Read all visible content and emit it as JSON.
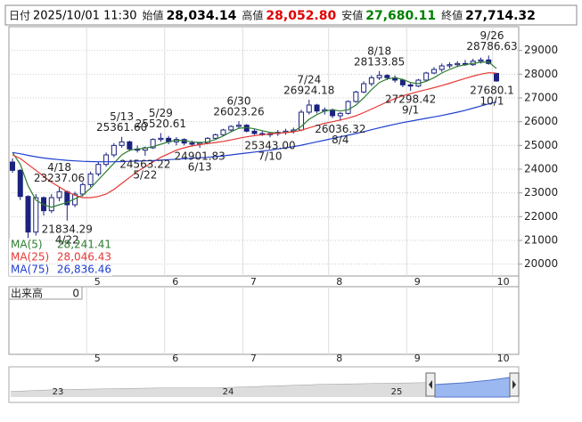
{
  "header": {
    "fields": [
      {
        "label": "日付",
        "value": "2025/10/01 11:30",
        "color": "#000000"
      },
      {
        "label": "始値",
        "value": "28,034.14",
        "color": "#000000"
      },
      {
        "label": "高値",
        "value": "28,052.80",
        "color": "#e00000"
      },
      {
        "label": "安値",
        "value": "27,680.11",
        "color": "#008000"
      },
      {
        "label": "終値",
        "value": "27,714.32",
        "color": "#000000"
      }
    ]
  },
  "chart_data": {
    "type": "candlestick",
    "categories": [
      null,
      null,
      null,
      null,
      null,
      null,
      null,
      null,
      null,
      null,
      "5",
      null,
      null,
      null,
      null,
      null,
      null,
      null,
      null,
      null,
      "6",
      null,
      null,
      null,
      null,
      null,
      null,
      null,
      null,
      null,
      "7",
      null,
      null,
      null,
      null,
      null,
      null,
      null,
      null,
      null,
      null,
      "8",
      null,
      null,
      null,
      null,
      null,
      null,
      null,
      null,
      null,
      "9",
      null,
      null,
      null,
      null,
      null,
      null,
      null,
      null,
      null,
      null,
      "10"
    ],
    "candles": [
      [
        24300,
        24450,
        23850,
        23950
      ],
      [
        23950,
        24000,
        22700,
        22850
      ],
      [
        22850,
        22900,
        21100,
        21350
      ],
      [
        21350,
        22950,
        21200,
        22800
      ],
      [
        22800,
        22850,
        22050,
        22250
      ],
      [
        22250,
        22950,
        22150,
        22800
      ],
      [
        22800,
        23237.06,
        22650,
        23050
      ],
      [
        23050,
        23100,
        21834.29,
        22500
      ],
      [
        22500,
        23050,
        22400,
        22950
      ],
      [
        22950,
        23450,
        22850,
        23350
      ],
      [
        23350,
        23900,
        23250,
        23800
      ],
      [
        23800,
        24300,
        23700,
        24200
      ],
      [
        24200,
        24700,
        24100,
        24600
      ],
      [
        24600,
        25100,
        24500,
        25000
      ],
      [
        25000,
        25361.6,
        24900,
        25150
      ],
      [
        25150,
        25200,
        24750,
        24850
      ],
      [
        24850,
        25000,
        24700,
        24800
      ],
      [
        24800,
        24950,
        24563.22,
        24900
      ],
      [
        24900,
        25300,
        24850,
        25250
      ],
      [
        25250,
        25520.61,
        25150,
        25300
      ],
      [
        25300,
        25400,
        25050,
        25150
      ],
      [
        25150,
        25350,
        25000,
        25250
      ],
      [
        25250,
        25300,
        25000,
        25100
      ],
      [
        25100,
        25200,
        24950,
        25050
      ],
      [
        25050,
        25150,
        24901.83,
        25100
      ],
      [
        25100,
        25350,
        25050,
        25300
      ],
      [
        25300,
        25500,
        25250,
        25450
      ],
      [
        25450,
        25700,
        25400,
        25650
      ],
      [
        25650,
        25850,
        25550,
        25800
      ],
      [
        25800,
        26023.26,
        25700,
        25850
      ],
      [
        25850,
        25900,
        25550,
        25600
      ],
      [
        25600,
        25700,
        25450,
        25500
      ],
      [
        25500,
        25600,
        25400,
        25450
      ],
      [
        25450,
        25550,
        25343,
        25500
      ],
      [
        25500,
        25650,
        25400,
        25550
      ],
      [
        25550,
        25700,
        25450,
        25600
      ],
      [
        25600,
        25750,
        25500,
        25650
      ],
      [
        25650,
        26500,
        25600,
        26400
      ],
      [
        26400,
        26924.18,
        26300,
        26700
      ],
      [
        26700,
        26750,
        26350,
        26450
      ],
      [
        26450,
        26600,
        26300,
        26500
      ],
      [
        26500,
        26550,
        26150,
        26250
      ],
      [
        26250,
        26400,
        26036.32,
        26350
      ],
      [
        26350,
        26900,
        26300,
        26850
      ],
      [
        26850,
        27300,
        26800,
        27250
      ],
      [
        27250,
        27700,
        27200,
        27600
      ],
      [
        27600,
        27950,
        27500,
        27850
      ],
      [
        27850,
        28133.85,
        27750,
        27950
      ],
      [
        27950,
        28000,
        27750,
        27850
      ],
      [
        27850,
        27950,
        27650,
        27750
      ],
      [
        27750,
        27800,
        27450,
        27550
      ],
      [
        27550,
        27650,
        27298.42,
        27500
      ],
      [
        27500,
        27800,
        27450,
        27750
      ],
      [
        27750,
        28100,
        27700,
        28050
      ],
      [
        28050,
        28300,
        28000,
        28200
      ],
      [
        28200,
        28450,
        28100,
        28350
      ],
      [
        28350,
        28500,
        28250,
        28400
      ],
      [
        28400,
        28550,
        28300,
        28450
      ],
      [
        28450,
        28600,
        28350,
        28400
      ],
      [
        28400,
        28650,
        28350,
        28550
      ],
      [
        28550,
        28700,
        28450,
        28600
      ],
      [
        28600,
        28786.63,
        28400,
        28450
      ],
      [
        28034.14,
        28052.8,
        27680.11,
        27714.32
      ]
    ],
    "up_color": "#ffffff",
    "down_color": "#1a237e",
    "edge_color": "#1a237e",
    "series": [
      {
        "name": "MA(5)",
        "color": "#2e7d32",
        "current_label": "28,241.41",
        "values": [
          24700,
          24200,
          23300,
          22700,
          22500,
          22400,
          22500,
          22600,
          22750,
          22900,
          23200,
          23550,
          23900,
          24250,
          24600,
          24800,
          24850,
          24880,
          24950,
          25050,
          25150,
          25220,
          25200,
          25150,
          25120,
          25150,
          25250,
          25400,
          25580,
          25720,
          25750,
          25700,
          25620,
          25550,
          25520,
          25540,
          25580,
          25800,
          26100,
          26300,
          26450,
          26500,
          26450,
          26500,
          26700,
          27000,
          27350,
          27650,
          27800,
          27850,
          27780,
          27650,
          27600,
          27700,
          27850,
          28050,
          28200,
          28330,
          28400,
          28460,
          28500,
          28520,
          28241.41
        ]
      },
      {
        "name": "MA(25)",
        "color": "#e53935",
        "current_label": "28,046.43",
        "values": [
          24600,
          24450,
          24200,
          23950,
          23700,
          23450,
          23250,
          23050,
          22900,
          22800,
          22800,
          22850,
          22950,
          23150,
          23400,
          23650,
          23900,
          24100,
          24300,
          24500,
          24650,
          24800,
          24900,
          24980,
          25030,
          25080,
          25120,
          25170,
          25230,
          25300,
          25360,
          25410,
          25450,
          25480,
          25510,
          25540,
          25570,
          25640,
          25740,
          25840,
          25930,
          26000,
          26070,
          26150,
          26250,
          26380,
          26530,
          26680,
          26830,
          26970,
          27090,
          27180,
          27270,
          27350,
          27430,
          27520,
          27620,
          27720,
          27820,
          27920,
          28000,
          28060,
          28046.43
        ]
      },
      {
        "name": "MA(75)",
        "color": "#1e3fd0",
        "current_label": "26,836.46",
        "values": [
          24700,
          24650,
          24580,
          24520,
          24470,
          24430,
          24400,
          24370,
          24350,
          24330,
          24320,
          24310,
          24310,
          24310,
          24320,
          24330,
          24340,
          24350,
          24360,
          24380,
          24400,
          24420,
          24440,
          24460,
          24480,
          24500,
          24530,
          24560,
          24600,
          24640,
          24680,
          24720,
          24760,
          24800,
          24850,
          24900,
          24950,
          25010,
          25080,
          25150,
          25220,
          25290,
          25360,
          25430,
          25500,
          25580,
          25660,
          25740,
          25820,
          25890,
          25960,
          26020,
          26080,
          26140,
          26200,
          26260,
          26330,
          26400,
          26480,
          26570,
          26660,
          26750,
          26836.46
        ]
      }
    ],
    "annotations": [
      {
        "date": "4/18",
        "price": 23237.06
      },
      {
        "date": "4/22",
        "price": 21834.29
      },
      {
        "date": "5/13",
        "price": {
          "value": 25361.6,
          "label": "25361.60"
        }
      },
      {
        "date": "5/22",
        "price": 24563.22
      },
      {
        "date": "5/29",
        "price": 25520.61
      },
      {
        "date": "6/13",
        "price": 24901.83
      },
      {
        "date": "6/30",
        "price": 26023.26
      },
      {
        "date": "7/10",
        "price": {
          "value": 25343,
          "label": "25343.00"
        }
      },
      {
        "date": "7/24",
        "price": 26924.18
      },
      {
        "date": "8/4",
        "price": 26036.32
      },
      {
        "date": "8/18",
        "price": 28133.85
      },
      {
        "date": "9/1",
        "price": 27298.42
      },
      {
        "date": "9/26",
        "price": 28786.63
      },
      {
        "date": "10/1",
        "price": {
          "value": 27680.11,
          "label": "27680.1"
        }
      }
    ],
    "ylim": [
      19500,
      30000
    ],
    "yticks": [
      20000,
      21000,
      22000,
      23000,
      24000,
      25000,
      26000,
      27000,
      28000,
      29000
    ],
    "grid": true,
    "volume": {
      "label": "出来高",
      "yticks": [
        0
      ]
    }
  },
  "navigator": {
    "labels": [
      "23",
      "24",
      "25"
    ]
  }
}
